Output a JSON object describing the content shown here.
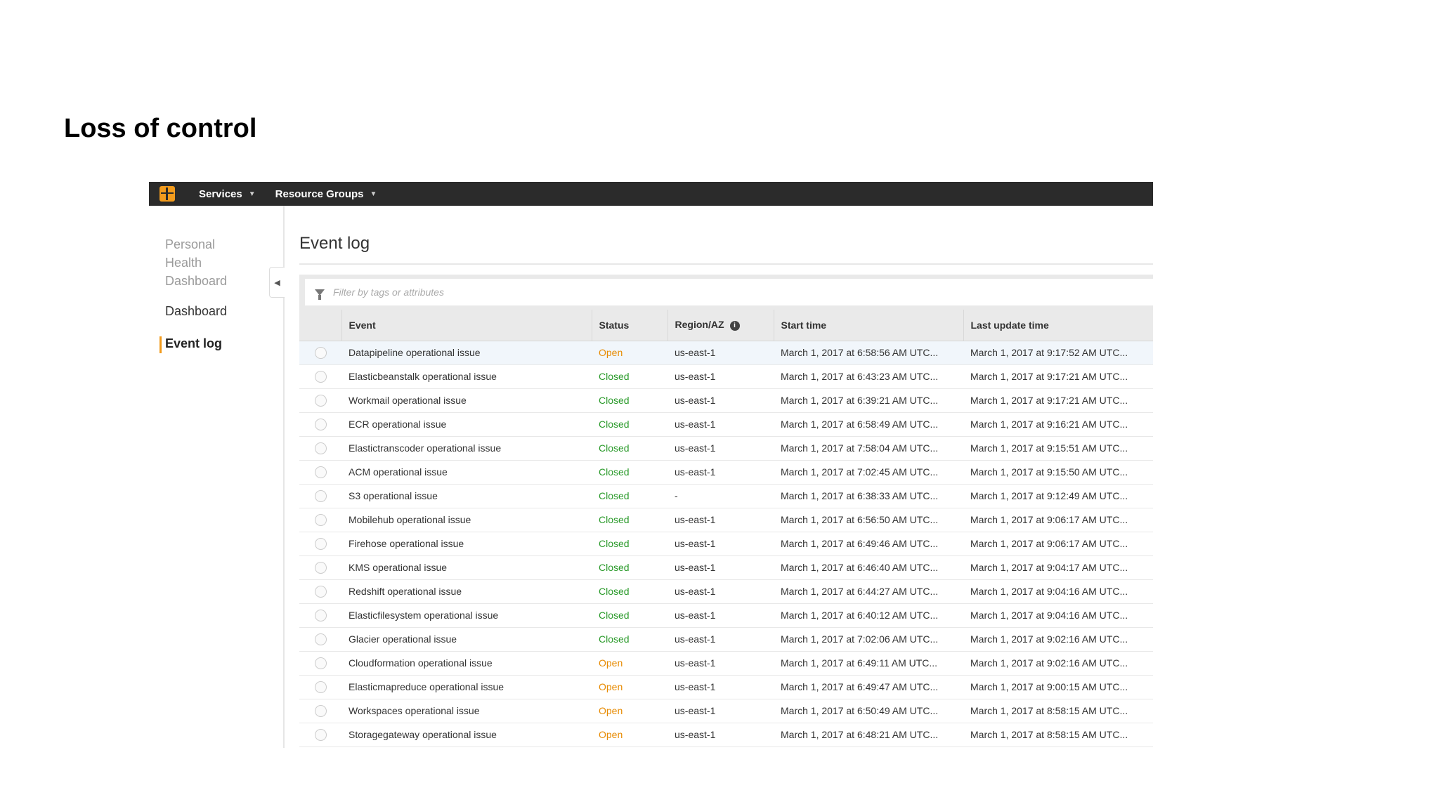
{
  "slide": {
    "title": "Loss of control"
  },
  "topbar": {
    "services_label": "Services",
    "resource_groups_label": "Resource Groups"
  },
  "sidebar": {
    "title": "Personal Health Dashboard",
    "items": [
      {
        "label": "Dashboard",
        "active": false
      },
      {
        "label": "Event log",
        "active": true
      }
    ]
  },
  "main": {
    "heading": "Event log",
    "filter": {
      "placeholder": "Filter by tags or attributes"
    },
    "columns": [
      "Event",
      "Status",
      "Region/AZ",
      "Start time",
      "Last update time"
    ],
    "rows": [
      {
        "event": "Datapipeline operational issue",
        "status": "Open",
        "region": "us-east-1",
        "start": "March 1, 2017 at 6:58:56 AM UTC...",
        "updated": "March 1, 2017 at 9:17:52 AM UTC..."
      },
      {
        "event": "Elasticbeanstalk operational issue",
        "status": "Closed",
        "region": "us-east-1",
        "start": "March 1, 2017 at 6:43:23 AM UTC...",
        "updated": "March 1, 2017 at 9:17:21 AM UTC..."
      },
      {
        "event": "Workmail operational issue",
        "status": "Closed",
        "region": "us-east-1",
        "start": "March 1, 2017 at 6:39:21 AM UTC...",
        "updated": "March 1, 2017 at 9:17:21 AM UTC..."
      },
      {
        "event": "ECR operational issue",
        "status": "Closed",
        "region": "us-east-1",
        "start": "March 1, 2017 at 6:58:49 AM UTC...",
        "updated": "March 1, 2017 at 9:16:21 AM UTC..."
      },
      {
        "event": "Elastictranscoder operational issue",
        "status": "Closed",
        "region": "us-east-1",
        "start": "March 1, 2017 at 7:58:04 AM UTC...",
        "updated": "March 1, 2017 at 9:15:51 AM UTC..."
      },
      {
        "event": "ACM operational issue",
        "status": "Closed",
        "region": "us-east-1",
        "start": "March 1, 2017 at 7:02:45 AM UTC...",
        "updated": "March 1, 2017 at 9:15:50 AM UTC..."
      },
      {
        "event": "S3 operational issue",
        "status": "Closed",
        "region": "-",
        "start": "March 1, 2017 at 6:38:33 AM UTC...",
        "updated": "March 1, 2017 at 9:12:49 AM UTC..."
      },
      {
        "event": "Mobilehub operational issue",
        "status": "Closed",
        "region": "us-east-1",
        "start": "March 1, 2017 at 6:56:50 AM UTC...",
        "updated": "March 1, 2017 at 9:06:17 AM UTC..."
      },
      {
        "event": "Firehose operational issue",
        "status": "Closed",
        "region": "us-east-1",
        "start": "March 1, 2017 at 6:49:46 AM UTC...",
        "updated": "March 1, 2017 at 9:06:17 AM UTC..."
      },
      {
        "event": "KMS operational issue",
        "status": "Closed",
        "region": "us-east-1",
        "start": "March 1, 2017 at 6:46:40 AM UTC...",
        "updated": "March 1, 2017 at 9:04:17 AM UTC..."
      },
      {
        "event": "Redshift operational issue",
        "status": "Closed",
        "region": "us-east-1",
        "start": "March 1, 2017 at 6:44:27 AM UTC...",
        "updated": "March 1, 2017 at 9:04:16 AM UTC..."
      },
      {
        "event": "Elasticfilesystem operational issue",
        "status": "Closed",
        "region": "us-east-1",
        "start": "March 1, 2017 at 6:40:12 AM UTC...",
        "updated": "March 1, 2017 at 9:04:16 AM UTC..."
      },
      {
        "event": "Glacier operational issue",
        "status": "Closed",
        "region": "us-east-1",
        "start": "March 1, 2017 at 7:02:06 AM UTC...",
        "updated": "March 1, 2017 at 9:02:16 AM UTC..."
      },
      {
        "event": "Cloudformation operational issue",
        "status": "Open",
        "region": "us-east-1",
        "start": "March 1, 2017 at 6:49:11 AM UTC...",
        "updated": "March 1, 2017 at 9:02:16 AM UTC..."
      },
      {
        "event": "Elasticmapreduce operational issue",
        "status": "Open",
        "region": "us-east-1",
        "start": "March 1, 2017 at 6:49:47 AM UTC...",
        "updated": "March 1, 2017 at 9:00:15 AM UTC..."
      },
      {
        "event": "Workspaces operational issue",
        "status": "Open",
        "region": "us-east-1",
        "start": "March 1, 2017 at 6:50:49 AM UTC...",
        "updated": "March 1, 2017 at 8:58:15 AM UTC..."
      },
      {
        "event": "Storagegateway operational issue",
        "status": "Open",
        "region": "us-east-1",
        "start": "March 1, 2017 at 6:48:21 AM UTC...",
        "updated": "March 1, 2017 at 8:58:15 AM UTC..."
      }
    ]
  },
  "colors": {
    "topbar_bg": "#2b2b2b",
    "accent": "#f29b1d",
    "status_open": "#e78a00",
    "status_closed": "#2a9a2a"
  }
}
